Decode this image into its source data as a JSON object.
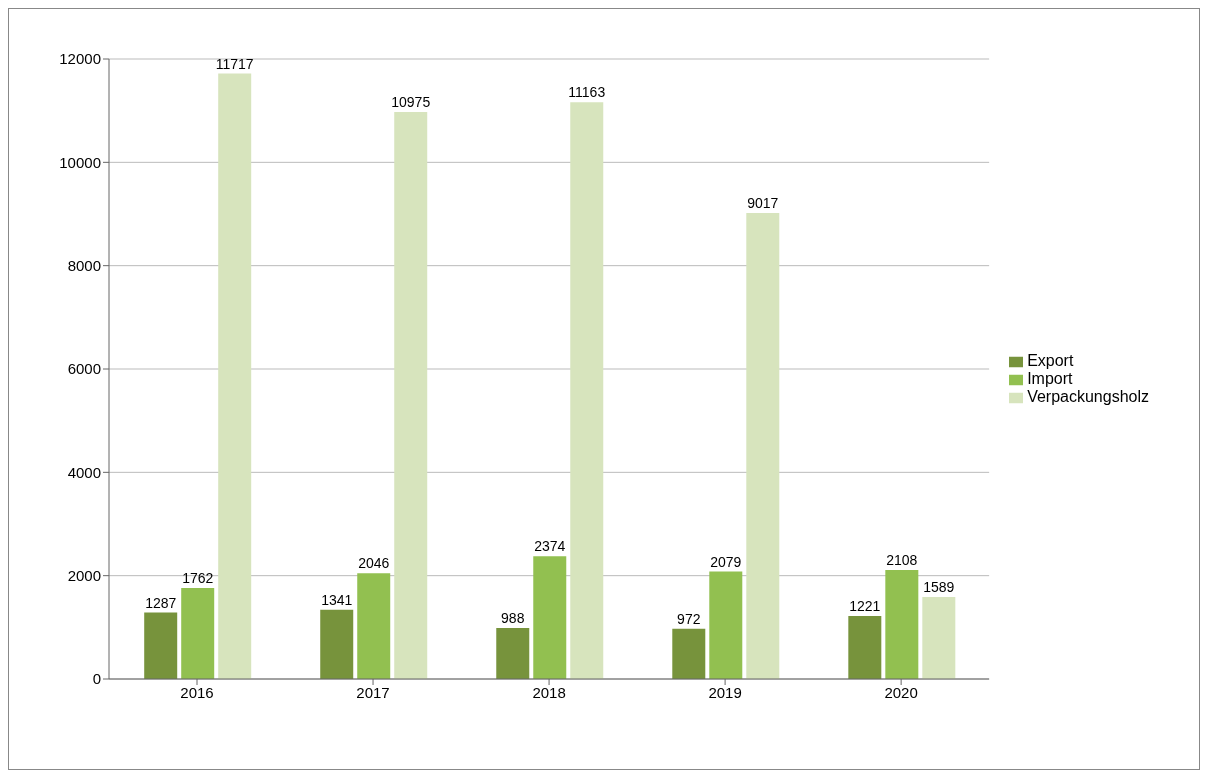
{
  "chart_data": {
    "type": "bar",
    "categories": [
      "2016",
      "2017",
      "2018",
      "2019",
      "2020"
    ],
    "series": [
      {
        "name": "Export",
        "color": "#77933c",
        "values": [
          1287,
          1341,
          988,
          972,
          1221
        ]
      },
      {
        "name": "Import",
        "color": "#92c050",
        "values": [
          1762,
          2046,
          2374,
          2079,
          2108
        ]
      },
      {
        "name": "Verpackungsholz",
        "color": "#d7e4bd",
        "values": [
          11717,
          10975,
          11163,
          9017,
          1589
        ]
      }
    ],
    "ylim": [
      0,
      12000
    ],
    "yticks": [
      0,
      2000,
      4000,
      6000,
      8000,
      10000,
      12000
    ],
    "grid": "y",
    "legend": "right",
    "data_labels": true
  }
}
